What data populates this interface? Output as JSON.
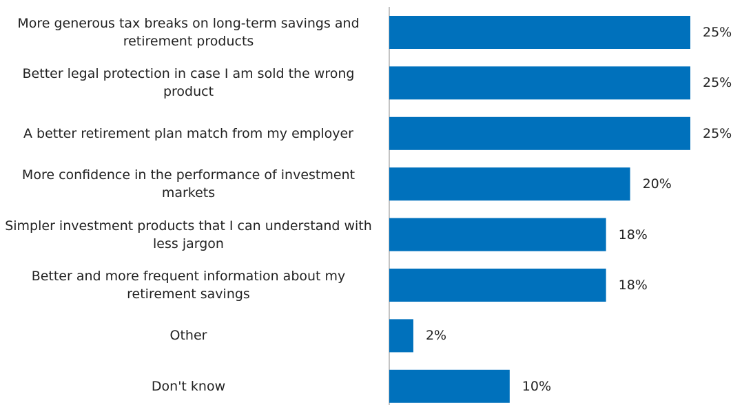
{
  "chart_data": {
    "type": "bar",
    "orientation": "horizontal",
    "categories": [
      "More generous tax breaks on long-term savings and retirement products",
      "Better legal protection in case I am sold the wrong product",
      "A better retirement plan match from my employer",
      "More confidence in the performance of investment markets",
      "Simpler investment products that I can understand with less jargon",
      "Better and more frequent information about my retirement savings",
      "Other",
      "Don't know"
    ],
    "values": [
      25,
      25,
      25,
      20,
      18,
      18,
      2,
      10
    ],
    "value_labels": [
      "25%",
      "25%",
      "25%",
      "20%",
      "18%",
      "18%",
      "2%",
      "10%"
    ],
    "color": "#0071bc",
    "xlim": [
      0,
      25
    ]
  }
}
